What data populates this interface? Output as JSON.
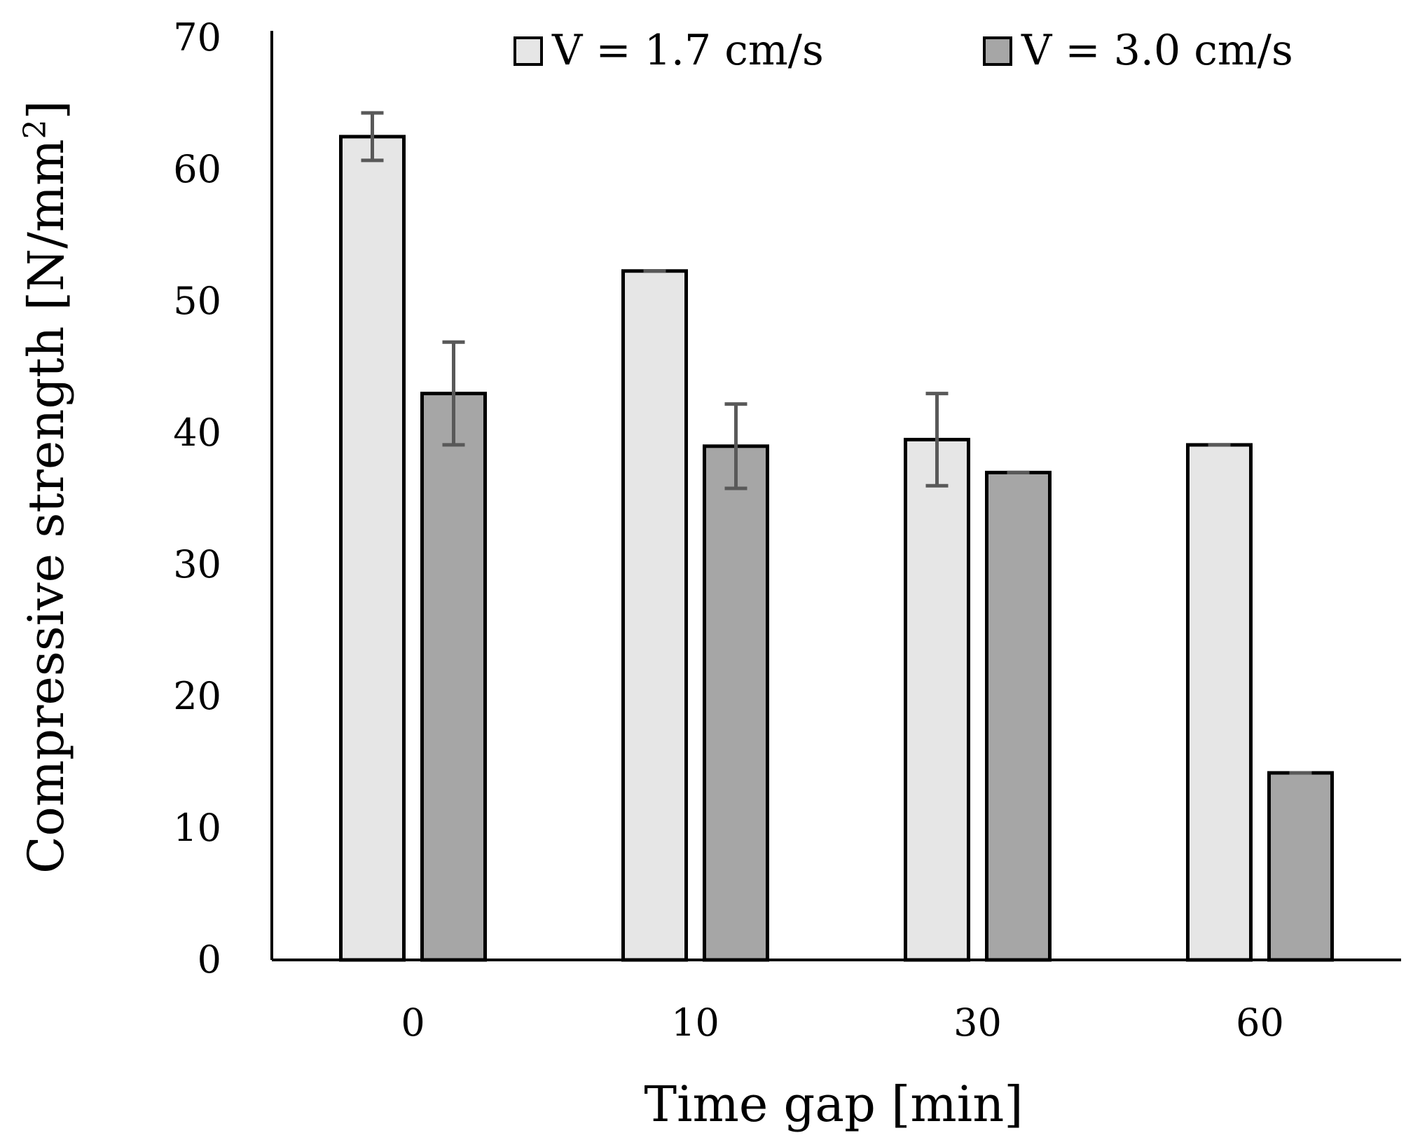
{
  "chart_data": {
    "type": "bar",
    "title": "",
    "xlabel": "Time gap [min]",
    "ylabel_main": "Compressive strength [N/mm",
    "ylabel_sup": "2",
    "ylabel_end": "]",
    "ylim": [
      0,
      70
    ],
    "yticks": [
      0,
      10,
      20,
      30,
      40,
      50,
      60,
      70
    ],
    "grid": false,
    "legend_position": "top",
    "categories": [
      "0",
      "10",
      "30",
      "60"
    ],
    "series": [
      {
        "name": "V = 1.7 cm/s",
        "color": "#e6e6e6",
        "values": [
          62.5,
          52.3,
          39.5,
          39.1
        ],
        "errors": [
          1.8,
          0.0,
          3.5,
          0.0
        ]
      },
      {
        "name": "V = 3.0 cm/s",
        "color": "#a6a6a6",
        "values": [
          43.0,
          39.0,
          37.0,
          14.2
        ],
        "errors": [
          3.9,
          3.2,
          0.0,
          0.0
        ]
      }
    ]
  }
}
